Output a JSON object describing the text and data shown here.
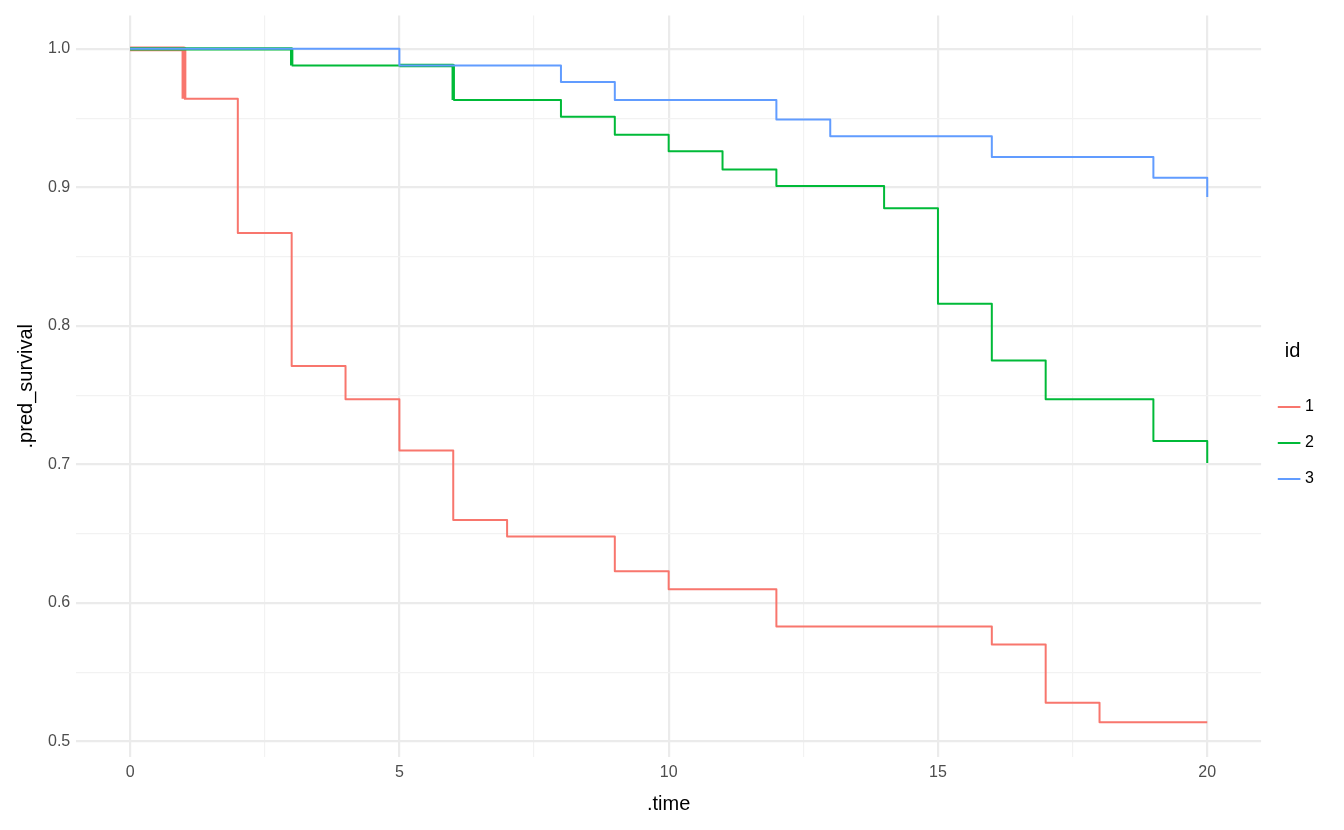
{
  "chart_data": {
    "type": "step",
    "xlabel": ".time",
    "ylabel": ".pred_survival",
    "legend_title": "id",
    "x": [
      0,
      1,
      2,
      3,
      4,
      5,
      6,
      7,
      8,
      9,
      10,
      11,
      12,
      13,
      14,
      15,
      16,
      17,
      18,
      19,
      20
    ],
    "series": [
      {
        "name": "1",
        "color": "#f8766d",
        "values": [
          1.0,
          0.964,
          0.867,
          0.771,
          0.747,
          0.71,
          0.66,
          0.648,
          0.648,
          0.623,
          0.61,
          0.61,
          0.583,
          0.583,
          0.583,
          0.583,
          0.57,
          0.528,
          0.514,
          0.514,
          0.514
        ]
      },
      {
        "name": "2",
        "color": "#00ba38",
        "values": [
          1.0,
          1.0,
          1.0,
          0.988,
          0.988,
          0.988,
          0.963,
          0.963,
          0.951,
          0.938,
          0.926,
          0.913,
          0.901,
          0.901,
          0.885,
          0.816,
          0.775,
          0.747,
          0.747,
          0.717,
          0.701
        ]
      },
      {
        "name": "3",
        "color": "#619cff",
        "values": [
          1.0,
          1.0,
          1.0,
          1.0,
          1.0,
          0.988,
          0.988,
          0.988,
          0.976,
          0.963,
          0.963,
          0.963,
          0.949,
          0.937,
          0.937,
          0.937,
          0.922,
          0.922,
          0.922,
          0.907,
          0.893
        ]
      }
    ],
    "xlim": [
      -1,
      21
    ],
    "ylim": [
      0.489,
      1.024
    ],
    "xticks": [
      0,
      {
        "value": 2.5,
        "label": null
      },
      5,
      {
        "value": 7.5,
        "label": null
      },
      10,
      {
        "value": 12.5,
        "label": null
      },
      15,
      {
        "value": 17.5,
        "label": null
      },
      20
    ],
    "yticks": [
      {
        "value": 0.5,
        "label": "0.5"
      },
      {
        "value": 0.55,
        "label": null
      },
      {
        "value": 0.6,
        "label": "0.6"
      },
      {
        "value": 0.65,
        "label": null
      },
      {
        "value": 0.7,
        "label": "0.7"
      },
      {
        "value": 0.75,
        "label": null
      },
      {
        "value": 0.8,
        "label": "0.8"
      },
      {
        "value": 0.85,
        "label": null
      },
      {
        "value": 0.9,
        "label": "0.9"
      },
      {
        "value": 0.95,
        "label": null
      },
      {
        "value": 1.0,
        "label": "1.0"
      }
    ],
    "grid": true,
    "legend": "right",
    "marker": "none",
    "line_style": "solid"
  }
}
